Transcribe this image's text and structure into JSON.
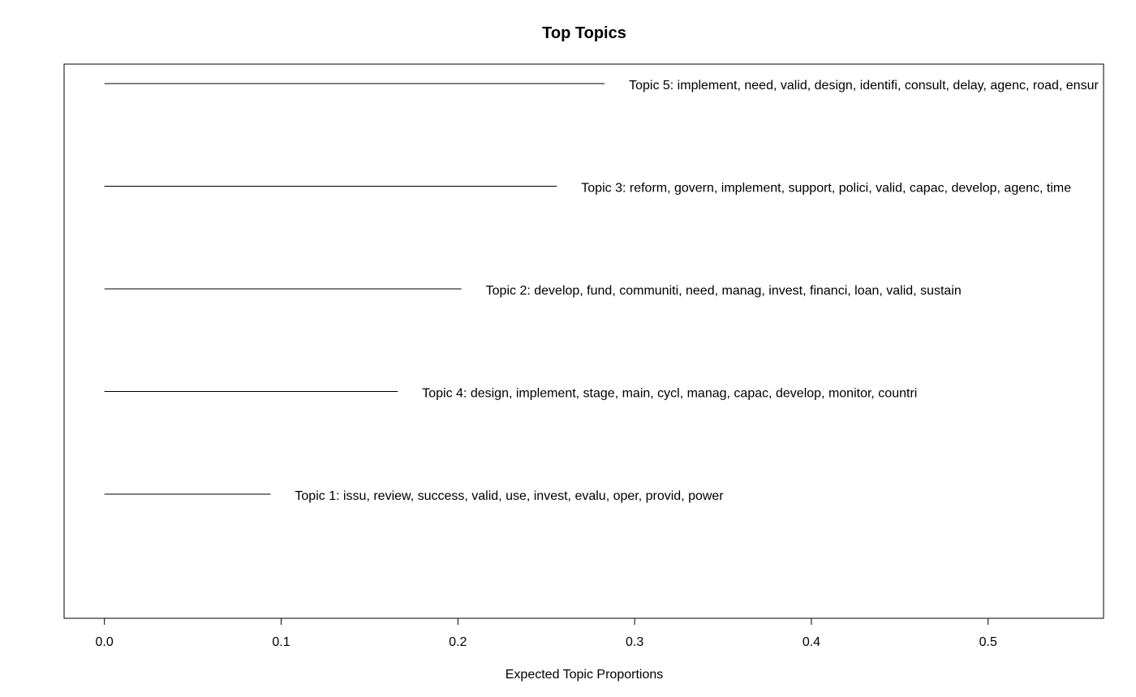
{
  "chart_data": {
    "type": "bar",
    "title": "Top Topics",
    "xlabel": "Expected Topic Proportions",
    "ylabel": "",
    "orientation": "horizontal",
    "xlim": [
      -0.0228,
      0.5653
    ],
    "x_ticks": [
      0.0,
      0.1,
      0.2,
      0.3,
      0.4,
      0.5
    ],
    "x_tick_labels": [
      "0.0",
      "0.1",
      "0.2",
      "0.3",
      "0.4",
      "0.5"
    ],
    "grid": false,
    "legend": "none",
    "bar_style": "line segment from 0",
    "bar_color": "#000000",
    "topics": [
      {
        "label": "Topic 5: implement, need, valid, design, identifi, consult, delay, agenc, road, ensur",
        "value": 0.283
      },
      {
        "label": "Topic 3: reform, govern, implement, support, polici, valid, capac, develop, agenc, time",
        "value": 0.256
      },
      {
        "label": "Topic 2: develop, fund, communiti, need, manag, invest, financi, loan, valid, sustain",
        "value": 0.202
      },
      {
        "label": "Topic 4: design, implement, stage, main, cycl, manag, capac, develop, monitor, countri",
        "value": 0.166
      },
      {
        "label": "Topic 1: issu, review, success, valid, use, invest, evalu, oper, provid, power",
        "value": 0.094
      }
    ]
  }
}
